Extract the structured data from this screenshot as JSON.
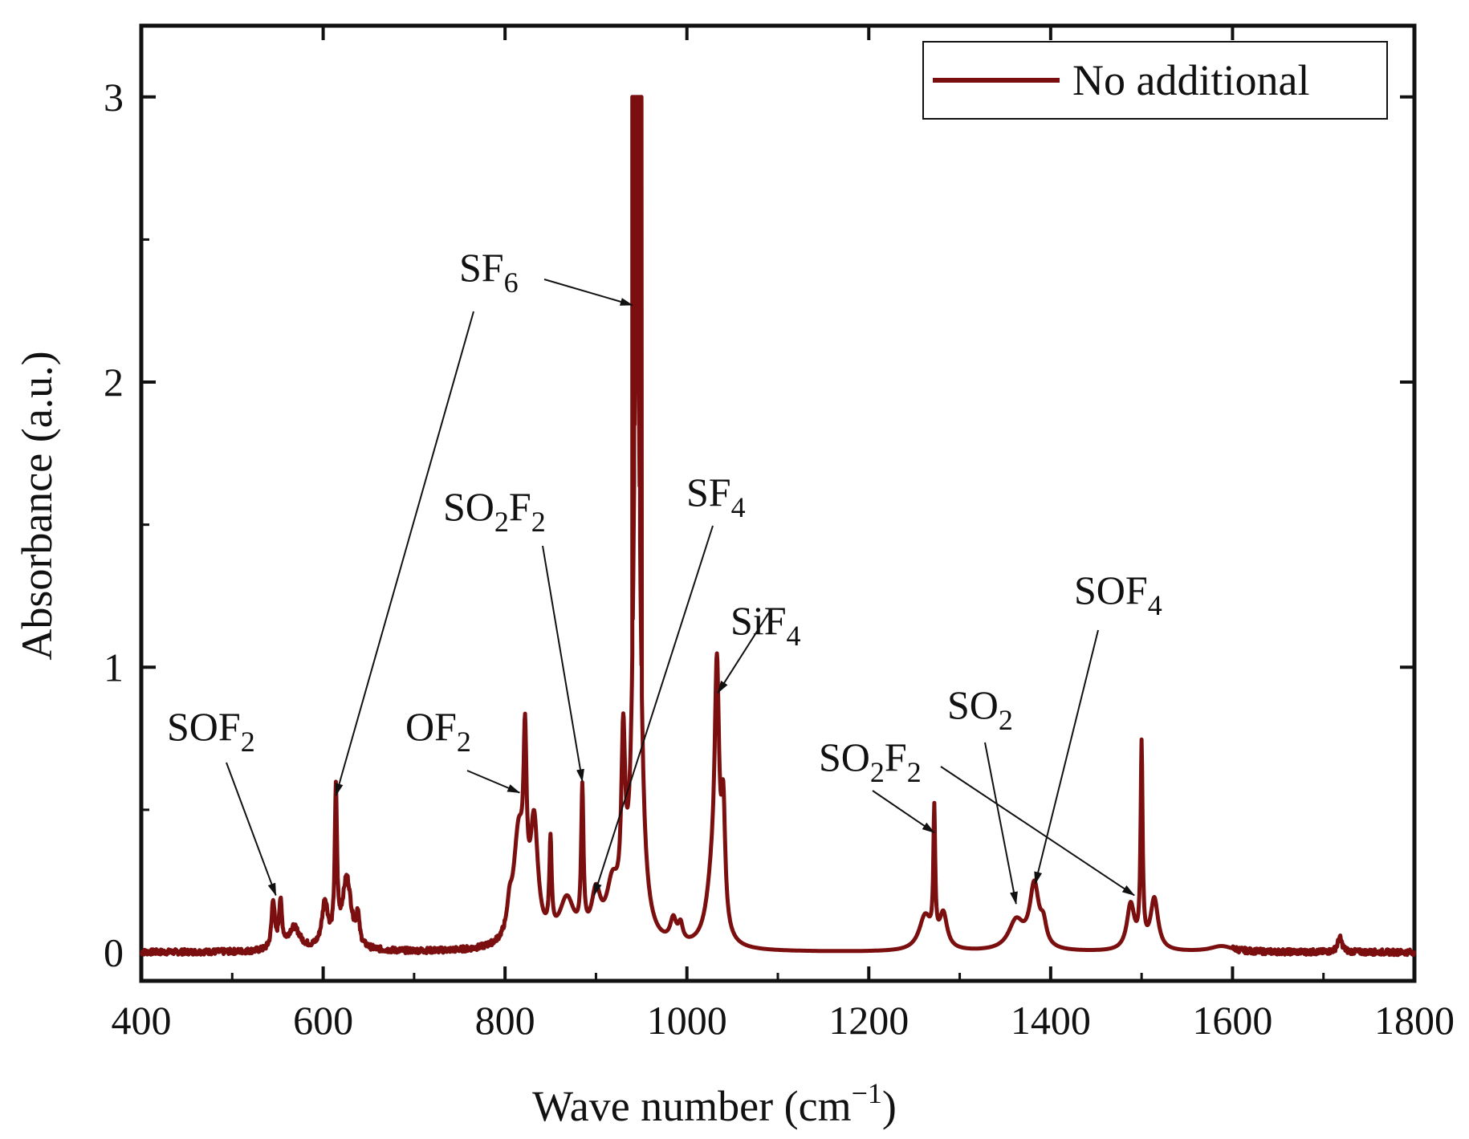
{
  "chart_data": {
    "type": "line",
    "xlabel": "Wave number (cm",
    "xlabel_sup": "−1",
    "xlabel_close": ")",
    "ylabel": "Absorbance (a.u.)",
    "xlim": [
      400,
      1800
    ],
    "ylim": [
      -0.1,
      3.25
    ],
    "xticks": [
      400,
      600,
      800,
      1000,
      1200,
      1400,
      1600,
      1800
    ],
    "xtick_labels": [
      "400",
      "600",
      "800",
      "1000",
      "1200",
      "1400",
      "1600",
      "1800"
    ],
    "yticks": [
      0,
      1,
      2,
      3
    ],
    "ytick_labels": [
      "0",
      "1",
      "2",
      "3"
    ],
    "series": [
      {
        "name": "No additional",
        "color": "#7b0f0f",
        "baseline": 0,
        "noise": 0.01,
        "peaks": [
          {
            "center": 545,
            "height": 0.17,
            "width": 2
          },
          {
            "center": 553,
            "height": 0.16,
            "width": 2
          },
          {
            "center": 568,
            "height": 0.08,
            "width": 8
          },
          {
            "center": 602,
            "height": 0.16,
            "width": 4
          },
          {
            "center": 614,
            "height": 0.52,
            "width": 1.5
          },
          {
            "center": 626,
            "height": 0.25,
            "width": 6
          },
          {
            "center": 638,
            "height": 0.1,
            "width": 2
          },
          {
            "center": 805,
            "height": 0.08,
            "width": 3
          },
          {
            "center": 815,
            "height": 0.38,
            "width": 7
          },
          {
            "center": 822,
            "height": 0.55,
            "width": 2
          },
          {
            "center": 832,
            "height": 0.4,
            "width": 5
          },
          {
            "center": 850,
            "height": 0.32,
            "width": 1.5
          },
          {
            "center": 868,
            "height": 0.16,
            "width": 10
          },
          {
            "center": 885,
            "height": 0.5,
            "width": 1.5
          },
          {
            "center": 900,
            "height": 0.16,
            "width": 6
          },
          {
            "center": 918,
            "height": 0.18,
            "width": 8
          },
          {
            "center": 930,
            "height": 0.6,
            "width": 2.5
          },
          {
            "center": 945,
            "height": 2.5,
            "width": 4
          },
          {
            "center": 985,
            "height": 0.08,
            "width": 4
          },
          {
            "center": 993,
            "height": 0.06,
            "width": 3
          },
          {
            "center": 1028,
            "height": 0.2,
            "width": 8
          },
          {
            "center": 1033,
            "height": 0.85,
            "width": 3
          },
          {
            "center": 1040,
            "height": 0.4,
            "width": 2.5
          },
          {
            "center": 1262,
            "height": 0.12,
            "width": 8
          },
          {
            "center": 1272,
            "height": 0.45,
            "width": 1.2
          },
          {
            "center": 1282,
            "height": 0.12,
            "width": 5
          },
          {
            "center": 1362,
            "height": 0.1,
            "width": 10
          },
          {
            "center": 1382,
            "height": 0.22,
            "width": 6
          },
          {
            "center": 1392,
            "height": 0.07,
            "width": 4
          },
          {
            "center": 1488,
            "height": 0.16,
            "width": 5
          },
          {
            "center": 1500,
            "height": 0.7,
            "width": 1.3
          },
          {
            "center": 1514,
            "height": 0.18,
            "width": 5
          },
          {
            "center": 1588,
            "height": 0.02,
            "width": 15
          },
          {
            "center": 1718,
            "height": 0.05,
            "width": 3
          }
        ],
        "extra_points": [
          [
            940,
            3.0
          ],
          [
            942,
            3.0
          ],
          [
            944,
            3.0
          ],
          [
            946,
            3.0
          ],
          [
            948,
            3.0
          ],
          [
            950,
            3.0
          ]
        ]
      }
    ],
    "legend": {
      "position": "top-right",
      "entries": [
        "No additional"
      ]
    },
    "annotations": [
      {
        "text": "SOF",
        "sub": "2",
        "x": 548,
        "y": 0.2
      },
      {
        "text": "SF",
        "sub": "6",
        "x": 614,
        "y": 0.55
      },
      {
        "text": "OF",
        "sub": "2",
        "x": 816,
        "y": 0.56
      },
      {
        "text": "SO",
        "sub": "2",
        "text2": "F",
        "sub2": "2",
        "x": 885,
        "y": 0.6
      },
      {
        "text": "SF",
        "sub": "6",
        "x": 940,
        "y": 2.27
      },
      {
        "text": "SF",
        "sub": "4",
        "x": 898,
        "y": 0.2
      },
      {
        "text": "SiF",
        "sub": "4",
        "x": 1034,
        "y": 0.91
      },
      {
        "text": "SO",
        "sub": "2",
        "text2": "F",
        "sub2": "2",
        "x": 1272,
        "y": 0.42
      },
      {
        "text": "SO",
        "sub": "2",
        "x": 1362,
        "y": 0.17
      },
      {
        "text": "SOF",
        "sub": "4",
        "x": 1383,
        "y": 0.24
      },
      {
        "text": "SO",
        "sub": "2",
        "text2": "F",
        "sub2": "2",
        "x": 1492,
        "y": 0.2
      }
    ]
  }
}
